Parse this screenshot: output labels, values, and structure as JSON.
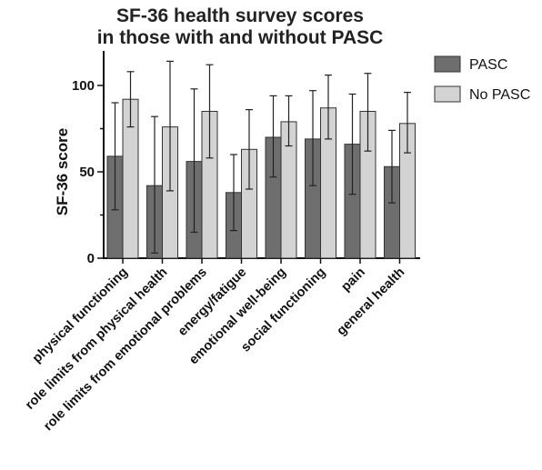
{
  "chart_data": {
    "type": "bar",
    "title": [
      "SF-36 health survey scores",
      "in those with and without PASC"
    ],
    "xlabel": "",
    "ylabel": "SF-36 score",
    "ylim": [
      0,
      120
    ],
    "yticks": [
      "0",
      "50",
      "100"
    ],
    "yticks_values": [
      0,
      50,
      100
    ],
    "grid": false,
    "legend_position": "top-right",
    "categories": [
      "physical functioning",
      "role limits from physical health",
      "role limits from emotional problems",
      "energy/fatigue",
      "emotional well-being",
      "social functioning",
      "pain",
      "general health"
    ],
    "series": [
      {
        "name": "PASC",
        "color": "#6e6e6e",
        "values": [
          59,
          42,
          56,
          38,
          70,
          69,
          66,
          53
        ],
        "error_low": [
          28,
          3,
          15,
          16,
          47,
          42,
          37,
          32
        ],
        "error_high": [
          90,
          82,
          98,
          60,
          94,
          97,
          95,
          74
        ]
      },
      {
        "name": "No PASC",
        "color": "#d3d3d3",
        "values": [
          92,
          76,
          85,
          63,
          79,
          87,
          85,
          78
        ],
        "error_low": [
          76,
          39,
          58,
          40,
          65,
          69,
          62,
          61
        ],
        "error_high": [
          108,
          114,
          112,
          86,
          94,
          106,
          107,
          96
        ]
      }
    ]
  }
}
